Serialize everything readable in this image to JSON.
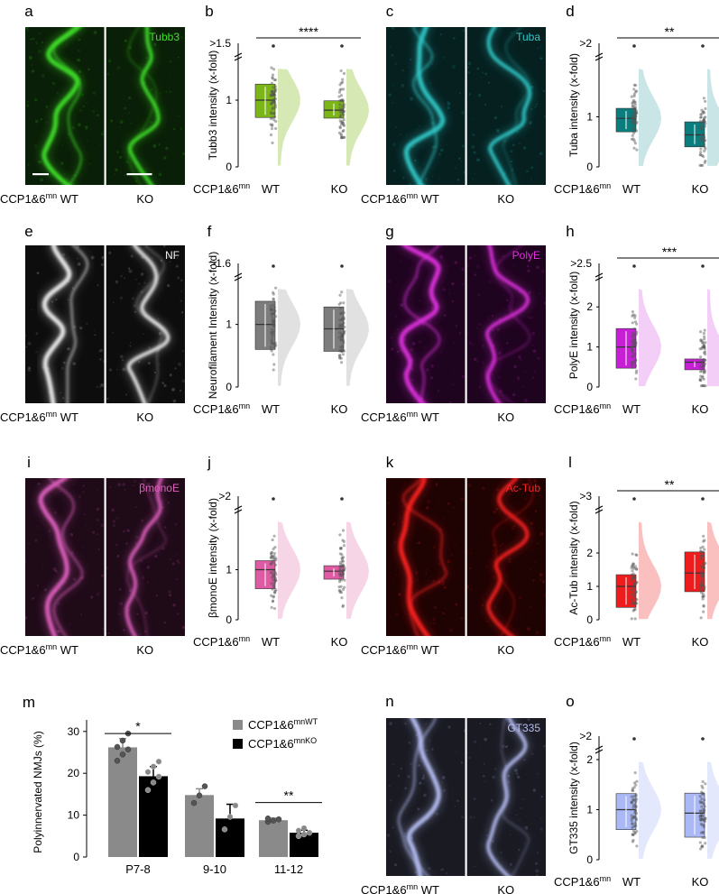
{
  "panels": [
    {
      "id": "a",
      "letter": "a",
      "kind": "micro",
      "color": "#3fe02a",
      "dark": "#0a1f07",
      "label": "Tubb3",
      "seed": 11,
      "cap_left": "CCP1&6",
      "cap_sup": "mn",
      "cap_wt": " WT",
      "cap_ko": "KO"
    },
    {
      "id": "b",
      "letter": "b",
      "kind": "box",
      "fill": "#7cb518",
      "light": "#cfe5a8",
      "ylabel": "Tubb3 intensity (x-fold)",
      "top_tick": ">1.5",
      "ticks": [
        0,
        1
      ],
      "ymax": 1.5,
      "sig": "****",
      "xlabel_left": "CCP1&6",
      "xlabel_sup": "mn",
      "groups": [
        "WT",
        "KO"
      ],
      "wt": {
        "q1": 0.74,
        "med": 1.0,
        "q3": 1.24,
        "wlo": 0.74,
        "whi": 1.24
      },
      "ko": {
        "q1": 0.73,
        "med": 0.85,
        "q3": 0.99,
        "wlo": 0.73,
        "whi": 0.99
      },
      "seed": 3
    },
    {
      "id": "c",
      "letter": "c",
      "kind": "micro",
      "color": "#30c9c9",
      "dark": "#062020",
      "label": "Tuba",
      "seed": 21,
      "cap_left": "CCP1&6",
      "cap_sup": "mn",
      "cap_wt": " WT",
      "cap_ko": "KO"
    },
    {
      "id": "d",
      "letter": "d",
      "kind": "box",
      "fill": "#0b7d7d",
      "light": "#bfe1e1",
      "ylabel": "Tuba intensity (x-fold)",
      "top_tick": ">2",
      "ticks": [
        0,
        1
      ],
      "ymax": 2,
      "sig": "**",
      "xlabel_left": "CCP1&6",
      "xlabel_sup": "mn",
      "groups": [
        "WT",
        "KO"
      ],
      "wt": {
        "q1": 0.7,
        "med": 0.97,
        "q3": 1.17,
        "wlo": 0.7,
        "whi": 1.17
      },
      "ko": {
        "q1": 0.4,
        "med": 0.64,
        "q3": 0.9,
        "wlo": 0.4,
        "whi": 0.9
      },
      "seed": 5
    },
    {
      "id": "e",
      "letter": "e",
      "kind": "micro",
      "color": "#f2f2f2",
      "dark": "#0d0d0d",
      "label": "NF",
      "seed": 31,
      "cap_left": "CCP1&6",
      "cap_sup": "mn",
      "cap_wt": " WT",
      "cap_ko": "KO"
    },
    {
      "id": "f",
      "letter": "f",
      "kind": "box",
      "fill": "#7c7c7c",
      "light": "#dcdcdc",
      "ylabel": "Neurofilament Intensity (x-fold)",
      "top_tick": ">1.6",
      "ticks": [
        0,
        1
      ],
      "ymax": 1.6,
      "sig": "",
      "xlabel_left": "CCP1&6",
      "xlabel_sup": "mn",
      "groups": [
        "WT",
        "KO"
      ],
      "wt": {
        "q1": 0.6,
        "med": 1.0,
        "q3": 1.37,
        "wlo": 0.6,
        "whi": 1.37
      },
      "ko": {
        "q1": 0.57,
        "med": 0.93,
        "q3": 1.28,
        "wlo": 0.57,
        "whi": 1.28
      },
      "seed": 7
    },
    {
      "id": "g",
      "letter": "g",
      "kind": "micro",
      "color": "#e030e0",
      "dark": "#1f041f",
      "label": "PolyE",
      "seed": 41,
      "cap_left": "CCP1&6",
      "cap_sup": "mn",
      "cap_wt": " WT",
      "cap_ko": "KO"
    },
    {
      "id": "h",
      "letter": "h",
      "kind": "box",
      "fill": "#c61fd6",
      "light": "#f1c6f5",
      "ylabel": "PolyE intensity (x-fold)",
      "top_tick": ">2.5",
      "ticks": [
        0,
        1,
        2
      ],
      "ymax": 2.5,
      "sig": "***",
      "xlabel_left": "CCP1&6",
      "xlabel_sup": "mn",
      "groups": [
        "WT",
        "KO"
      ],
      "wt": {
        "q1": 0.47,
        "med": 1.0,
        "q3": 1.46,
        "wlo": 0.47,
        "whi": 1.46
      },
      "ko": {
        "q1": 0.43,
        "med": 0.62,
        "q3": 0.7,
        "wlo": 0.43,
        "whi": 0.7
      },
      "seed": 9
    },
    {
      "id": "i",
      "letter": "i",
      "kind": "micro",
      "color": "#e060c0",
      "dark": "#1f0a18",
      "label": "βmonoE",
      "seed": 51,
      "cap_left": "CCP1&6",
      "cap_sup": "mn",
      "cap_wt": " WT",
      "cap_ko": "KO"
    },
    {
      "id": "j",
      "letter": "j",
      "kind": "box",
      "fill": "#de5aa3",
      "light": "#f5cfe2",
      "ylabel": "βmonoE intensity (x-fold)",
      "top_tick": ">2",
      "ticks": [
        0,
        1
      ],
      "ymax": 2,
      "sig": "",
      "xlabel_left": "CCP1&6",
      "xlabel_sup": "mn",
      "groups": [
        "WT",
        "KO"
      ],
      "wt": {
        "q1": 0.62,
        "med": 1.0,
        "q3": 1.18,
        "wlo": 0.62,
        "whi": 1.18
      },
      "ko": {
        "q1": 0.81,
        "med": 0.97,
        "q3": 1.08,
        "wlo": 0.81,
        "whi": 1.08
      },
      "seed": 13
    },
    {
      "id": "k",
      "letter": "k",
      "kind": "micro",
      "color": "#ff2020",
      "dark": "#1f0303",
      "label": "Ac-Tub",
      "seed": 61,
      "cap_left": "CCP1&6",
      "cap_sup": "mn",
      "cap_wt": " WT",
      "cap_ko": "KO"
    },
    {
      "id": "l",
      "letter": "l",
      "kind": "box",
      "fill": "#ee1c1c",
      "light": "#f9b4b4",
      "ylabel": "Ac-Tub intensity (x-fold)",
      "top_tick": ">3",
      "ticks": [
        0,
        1,
        2
      ],
      "ymax": 3,
      "sig": "**",
      "xlabel_left": "CCP1&6",
      "xlabel_sup": "mn",
      "groups": [
        "WT",
        "KO"
      ],
      "wt": {
        "q1": 0.37,
        "med": 1.0,
        "q3": 1.35,
        "wlo": 0.37,
        "whi": 1.35
      },
      "ko": {
        "q1": 0.84,
        "med": 1.4,
        "q3": 2.03,
        "wlo": 0.84,
        "whi": 2.03
      },
      "seed": 15
    },
    {
      "id": "n",
      "letter": "n",
      "kind": "micro",
      "color": "#b7bff5",
      "dark": "#191a22",
      "label": "GT335",
      "seed": 71,
      "cap_left": "CCP1&6",
      "cap_sup": "mn",
      "cap_wt": " WT",
      "cap_ko": "KO"
    },
    {
      "id": "o",
      "letter": "o",
      "kind": "box",
      "fill": "#aab8f5",
      "light": "#dfe4fb",
      "ylabel": "GT335 intensity (x-fold)",
      "top_tick": ">2",
      "ticks": [
        0,
        1,
        2
      ],
      "ymax": 2,
      "sig": "",
      "xlabel_left": "CCP1&6",
      "xlabel_sup": "mn",
      "groups": [
        "WT",
        "KO"
      ],
      "wt": {
        "q1": 0.6,
        "med": 1.0,
        "q3": 1.32,
        "wlo": 0.6,
        "whi": 1.32
      },
      "ko": {
        "q1": 0.45,
        "med": 0.93,
        "q3": 1.33,
        "wlo": 0.45,
        "whi": 1.33
      },
      "seed": 17
    }
  ],
  "chart_data": {
    "type": "bar",
    "letter": "m",
    "categories": [
      "P7-8",
      "9-10",
      "11-12"
    ],
    "ylabel": "Polyinnervated NMJs (%)",
    "ylim": [
      0,
      30
    ],
    "yticks": [
      0,
      10,
      20,
      30
    ],
    "series": [
      {
        "name_base": "CCP1&6",
        "name_sup": "mnWT",
        "color": "#8a8a8a",
        "values": [
          26.2,
          14.8,
          8.8
        ],
        "errors": [
          2.1,
          1.5,
          0.5
        ],
        "points": [
          [
            23.0,
            24.5,
            25.7,
            26.3,
            27.8,
            29.5
          ],
          [
            12.9,
            14.7,
            16.9
          ],
          [
            8.4,
            8.7,
            9.0,
            9.2
          ]
        ]
      },
      {
        "name_base": "CCP1&6",
        "name_sup": "mnKO",
        "color": "#000000",
        "values": [
          19.3,
          9.2,
          5.8
        ],
        "errors": [
          2.3,
          3.4,
          0.6
        ],
        "points": [
          [
            16.0,
            17.8,
            19.2,
            20.3,
            21.6,
            22.8
          ],
          [
            6.6,
            9.6,
            12.3
          ],
          [
            5.0,
            5.4,
            5.8,
            6.3,
            6.9
          ]
        ]
      }
    ],
    "significance": [
      {
        "category": "P7-8",
        "label": "*"
      },
      {
        "category": "11-12",
        "label": "**"
      }
    ],
    "legend": "top-right"
  }
}
